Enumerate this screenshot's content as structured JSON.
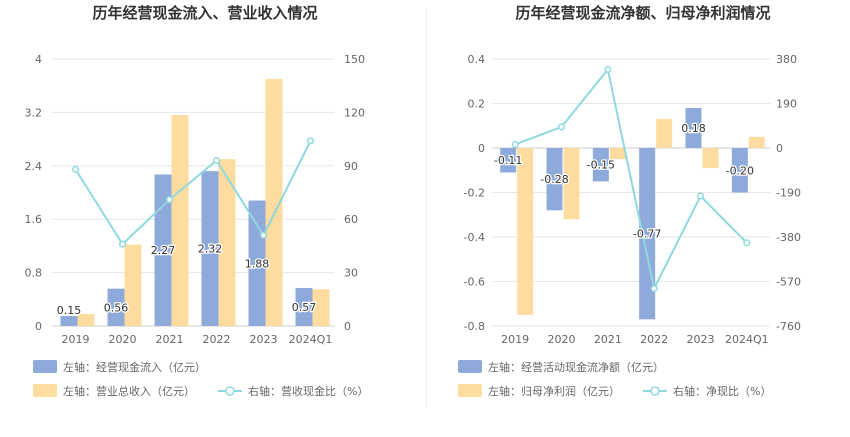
{
  "chart_data": [
    {
      "type": "bar",
      "title": "历年经营现金流入、营业收入情况",
      "categories": [
        "2019",
        "2020",
        "2021",
        "2022",
        "2023",
        "2024Q1"
      ],
      "left_axis": {
        "min": 0,
        "max": 4,
        "ticks": [
          "0",
          "0.8",
          "1.6",
          "2.4",
          "3.2",
          "4"
        ]
      },
      "right_axis": {
        "min": 0,
        "max": 150,
        "ticks": [
          "0",
          "30",
          "60",
          "90",
          "120",
          "150"
        ]
      },
      "grid": true,
      "legend_position": "bottom",
      "series": [
        {
          "name": "左轴：经营现金流入（亿元）",
          "axis": "left",
          "kind": "bar",
          "color": "#8eaadb",
          "values": [
            0.15,
            0.56,
            2.27,
            2.32,
            1.88,
            0.57
          ],
          "labels": [
            "0.15",
            "0.56",
            "2.27",
            "2.32",
            "1.88",
            "0.57"
          ]
        },
        {
          "name": "左轴：营业总收入（亿元）",
          "axis": "left",
          "kind": "bar",
          "color": "#fedb9e",
          "values": [
            0.18,
            1.22,
            3.16,
            2.5,
            3.7,
            0.55
          ]
        },
        {
          "name": "右轴：营收现金比（%）",
          "axis": "right",
          "kind": "line",
          "color": "#8fd8de",
          "values": [
            88,
            46,
            71,
            93,
            51,
            104
          ]
        }
      ]
    },
    {
      "type": "bar",
      "title": "历年经营现金流净额、归母净利润情况",
      "categories": [
        "2019",
        "2020",
        "2021",
        "2022",
        "2023",
        "2024Q1"
      ],
      "left_axis": {
        "min": -0.8,
        "max": 0.4,
        "ticks": [
          "-0.8",
          "-0.6",
          "-0.4",
          "-0.2",
          "0",
          "0.2",
          "0.4"
        ]
      },
      "right_axis": {
        "min": -760,
        "max": 380,
        "ticks": [
          "-760",
          "-570",
          "-380",
          "-190",
          "0",
          "190",
          "380"
        ]
      },
      "grid": true,
      "legend_position": "bottom",
      "series": [
        {
          "name": "左轴：经营活动现金流净额（亿元）",
          "axis": "left",
          "kind": "bar",
          "color": "#8eaadb",
          "values": [
            -0.11,
            -0.28,
            -0.15,
            -0.77,
            0.18,
            -0.2
          ],
          "labels": [
            "-0.11",
            "-0.28",
            "-0.15",
            "-0.77",
            "0.18",
            "-0.20"
          ]
        },
        {
          "name": "左轴：归母净利润（亿元）",
          "axis": "left",
          "kind": "bar",
          "color": "#fedb9e",
          "values": [
            -0.75,
            -0.32,
            -0.05,
            0.13,
            -0.09,
            0.05
          ]
        },
        {
          "name": "右轴：净现比（%）",
          "axis": "right",
          "kind": "line",
          "color": "#8fd8de",
          "values": [
            15,
            90,
            335,
            -600,
            -205,
            -405
          ]
        }
      ]
    }
  ]
}
